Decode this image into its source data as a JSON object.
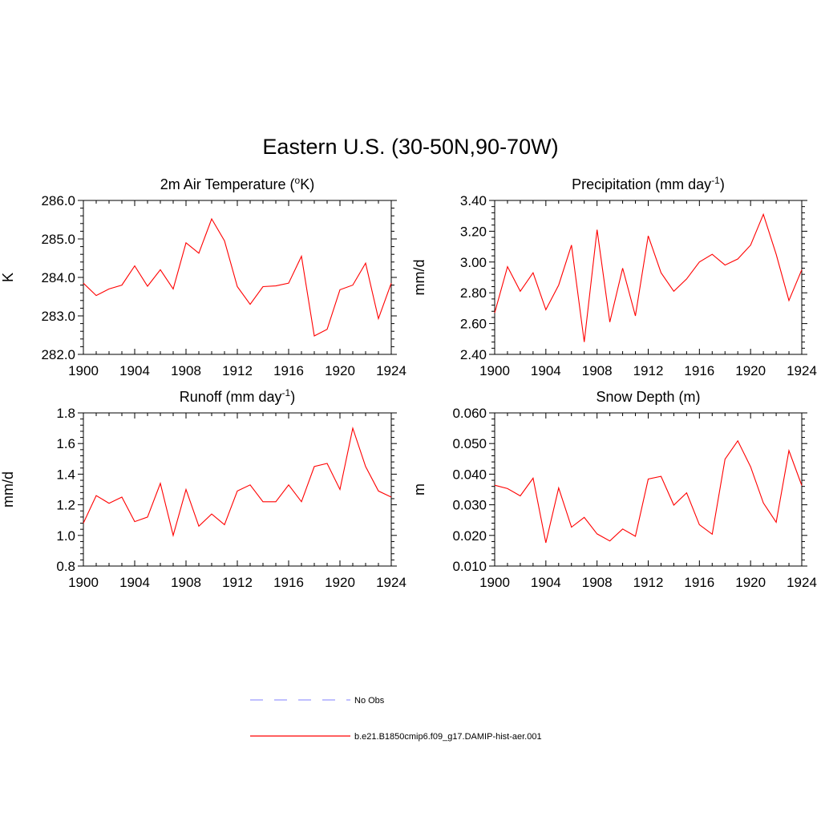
{
  "title": "Eastern U.S. (30-50N,90-70W)",
  "colors": {
    "model_line": "#ff0000",
    "obs_line": "#9999ff",
    "axis": "#000000"
  },
  "legend": [
    {
      "label": "No Obs",
      "style": "dashed",
      "color": "#9999ff"
    },
    {
      "label": "b.e21.B1850cmip6.f09_g17.DAMIP-hist-aer.001",
      "style": "solid",
      "color": "#ff0000"
    }
  ],
  "chart_data": [
    {
      "type": "line",
      "title": "2m Air Temperature (",
      "title_sup": "o",
      "title_tail": "K)",
      "ylabel": "K",
      "xlim": [
        1900,
        1924
      ],
      "ylim": [
        282.0,
        286.0
      ],
      "x_ticks": [
        1900,
        1904,
        1908,
        1912,
        1916,
        1920,
        1924
      ],
      "y_ticks": [
        "282.0",
        "283.0",
        "284.0",
        "285.0",
        "286.0"
      ],
      "grid": false,
      "series": [
        {
          "name": "b.e21.B1850cmip6.f09_g17.DAMIP-hist-aer.001",
          "x": [
            1900,
            1901,
            1902,
            1903,
            1904,
            1905,
            1906,
            1907,
            1908,
            1909,
            1910,
            1911,
            1912,
            1913,
            1914,
            1915,
            1916,
            1917,
            1918,
            1919,
            1920,
            1921,
            1922,
            1923,
            1924
          ],
          "values": [
            283.85,
            283.53,
            283.7,
            283.8,
            284.3,
            283.77,
            284.2,
            283.7,
            284.9,
            284.63,
            285.52,
            284.95,
            283.76,
            283.3,
            283.76,
            283.78,
            283.85,
            284.55,
            282.48,
            282.65,
            283.68,
            283.8,
            284.37,
            282.93,
            283.85
          ]
        }
      ]
    },
    {
      "type": "line",
      "title": "Precipitation (mm day",
      "title_sup": "-1",
      "title_tail": ")",
      "ylabel": "mm/d",
      "xlim": [
        1900,
        1924
      ],
      "ylim": [
        2.4,
        3.4
      ],
      "x_ticks": [
        1900,
        1904,
        1908,
        1912,
        1916,
        1920,
        1924
      ],
      "y_ticks": [
        "2.40",
        "2.60",
        "2.80",
        "3.00",
        "3.20",
        "3.40"
      ],
      "grid": false,
      "series": [
        {
          "name": "b.e21.B1850cmip6.f09_g17.DAMIP-hist-aer.001",
          "x": [
            1900,
            1901,
            1902,
            1903,
            1904,
            1905,
            1906,
            1907,
            1908,
            1909,
            1910,
            1911,
            1912,
            1913,
            1914,
            1915,
            1916,
            1917,
            1918,
            1919,
            1920,
            1921,
            1922,
            1923,
            1924
          ],
          "values": [
            2.67,
            2.97,
            2.81,
            2.93,
            2.69,
            2.85,
            3.11,
            2.48,
            3.21,
            2.61,
            2.96,
            2.65,
            3.17,
            2.93,
            2.81,
            2.89,
            3.0,
            3.05,
            2.98,
            3.02,
            3.11,
            3.31,
            3.05,
            2.75,
            2.95
          ]
        }
      ]
    },
    {
      "type": "line",
      "title": "Runoff (mm day",
      "title_sup": "-1",
      "title_tail": ")",
      "ylabel": "mm/d",
      "xlim": [
        1900,
        1924
      ],
      "ylim": [
        0.8,
        1.8
      ],
      "x_ticks": [
        1900,
        1904,
        1908,
        1912,
        1916,
        1920,
        1924
      ],
      "y_ticks": [
        "0.8",
        "1.0",
        "1.2",
        "1.4",
        "1.6",
        "1.8"
      ],
      "grid": false,
      "series": [
        {
          "name": "b.e21.B1850cmip6.f09_g17.DAMIP-hist-aer.001",
          "x": [
            1900,
            1901,
            1902,
            1903,
            1904,
            1905,
            1906,
            1907,
            1908,
            1909,
            1910,
            1911,
            1912,
            1913,
            1914,
            1915,
            1916,
            1917,
            1918,
            1919,
            1920,
            1921,
            1922,
            1923,
            1924
          ],
          "values": [
            1.08,
            1.26,
            1.21,
            1.25,
            1.09,
            1.12,
            1.34,
            1.0,
            1.3,
            1.06,
            1.14,
            1.07,
            1.29,
            1.33,
            1.22,
            1.22,
            1.33,
            1.22,
            1.45,
            1.47,
            1.3,
            1.7,
            1.45,
            1.29,
            1.25
          ]
        }
      ]
    },
    {
      "type": "line",
      "title": "Snow Depth (m)",
      "title_sup": "",
      "title_tail": "",
      "ylabel": "m",
      "xlim": [
        1900,
        1924
      ],
      "ylim": [
        0.01,
        0.06
      ],
      "x_ticks": [
        1900,
        1904,
        1908,
        1912,
        1916,
        1920,
        1924
      ],
      "y_ticks": [
        "0.010",
        "0.020",
        "0.030",
        "0.040",
        "0.050",
        "0.060"
      ],
      "grid": false,
      "series": [
        {
          "name": "b.e21.B1850cmip6.f09_g17.DAMIP-hist-aer.001",
          "x": [
            1900,
            1901,
            1902,
            1903,
            1904,
            1905,
            1906,
            1907,
            1908,
            1909,
            1910,
            1911,
            1912,
            1913,
            1914,
            1915,
            1916,
            1917,
            1918,
            1919,
            1920,
            1921,
            1922,
            1923,
            1924
          ],
          "values": [
            0.0364,
            0.0353,
            0.0329,
            0.0387,
            0.0176,
            0.0355,
            0.0227,
            0.0259,
            0.0205,
            0.0182,
            0.0221,
            0.0197,
            0.0384,
            0.0393,
            0.0299,
            0.0339,
            0.0235,
            0.0204,
            0.0449,
            0.0509,
            0.0424,
            0.0306,
            0.0243,
            0.0477,
            0.0363
          ]
        }
      ]
    }
  ]
}
